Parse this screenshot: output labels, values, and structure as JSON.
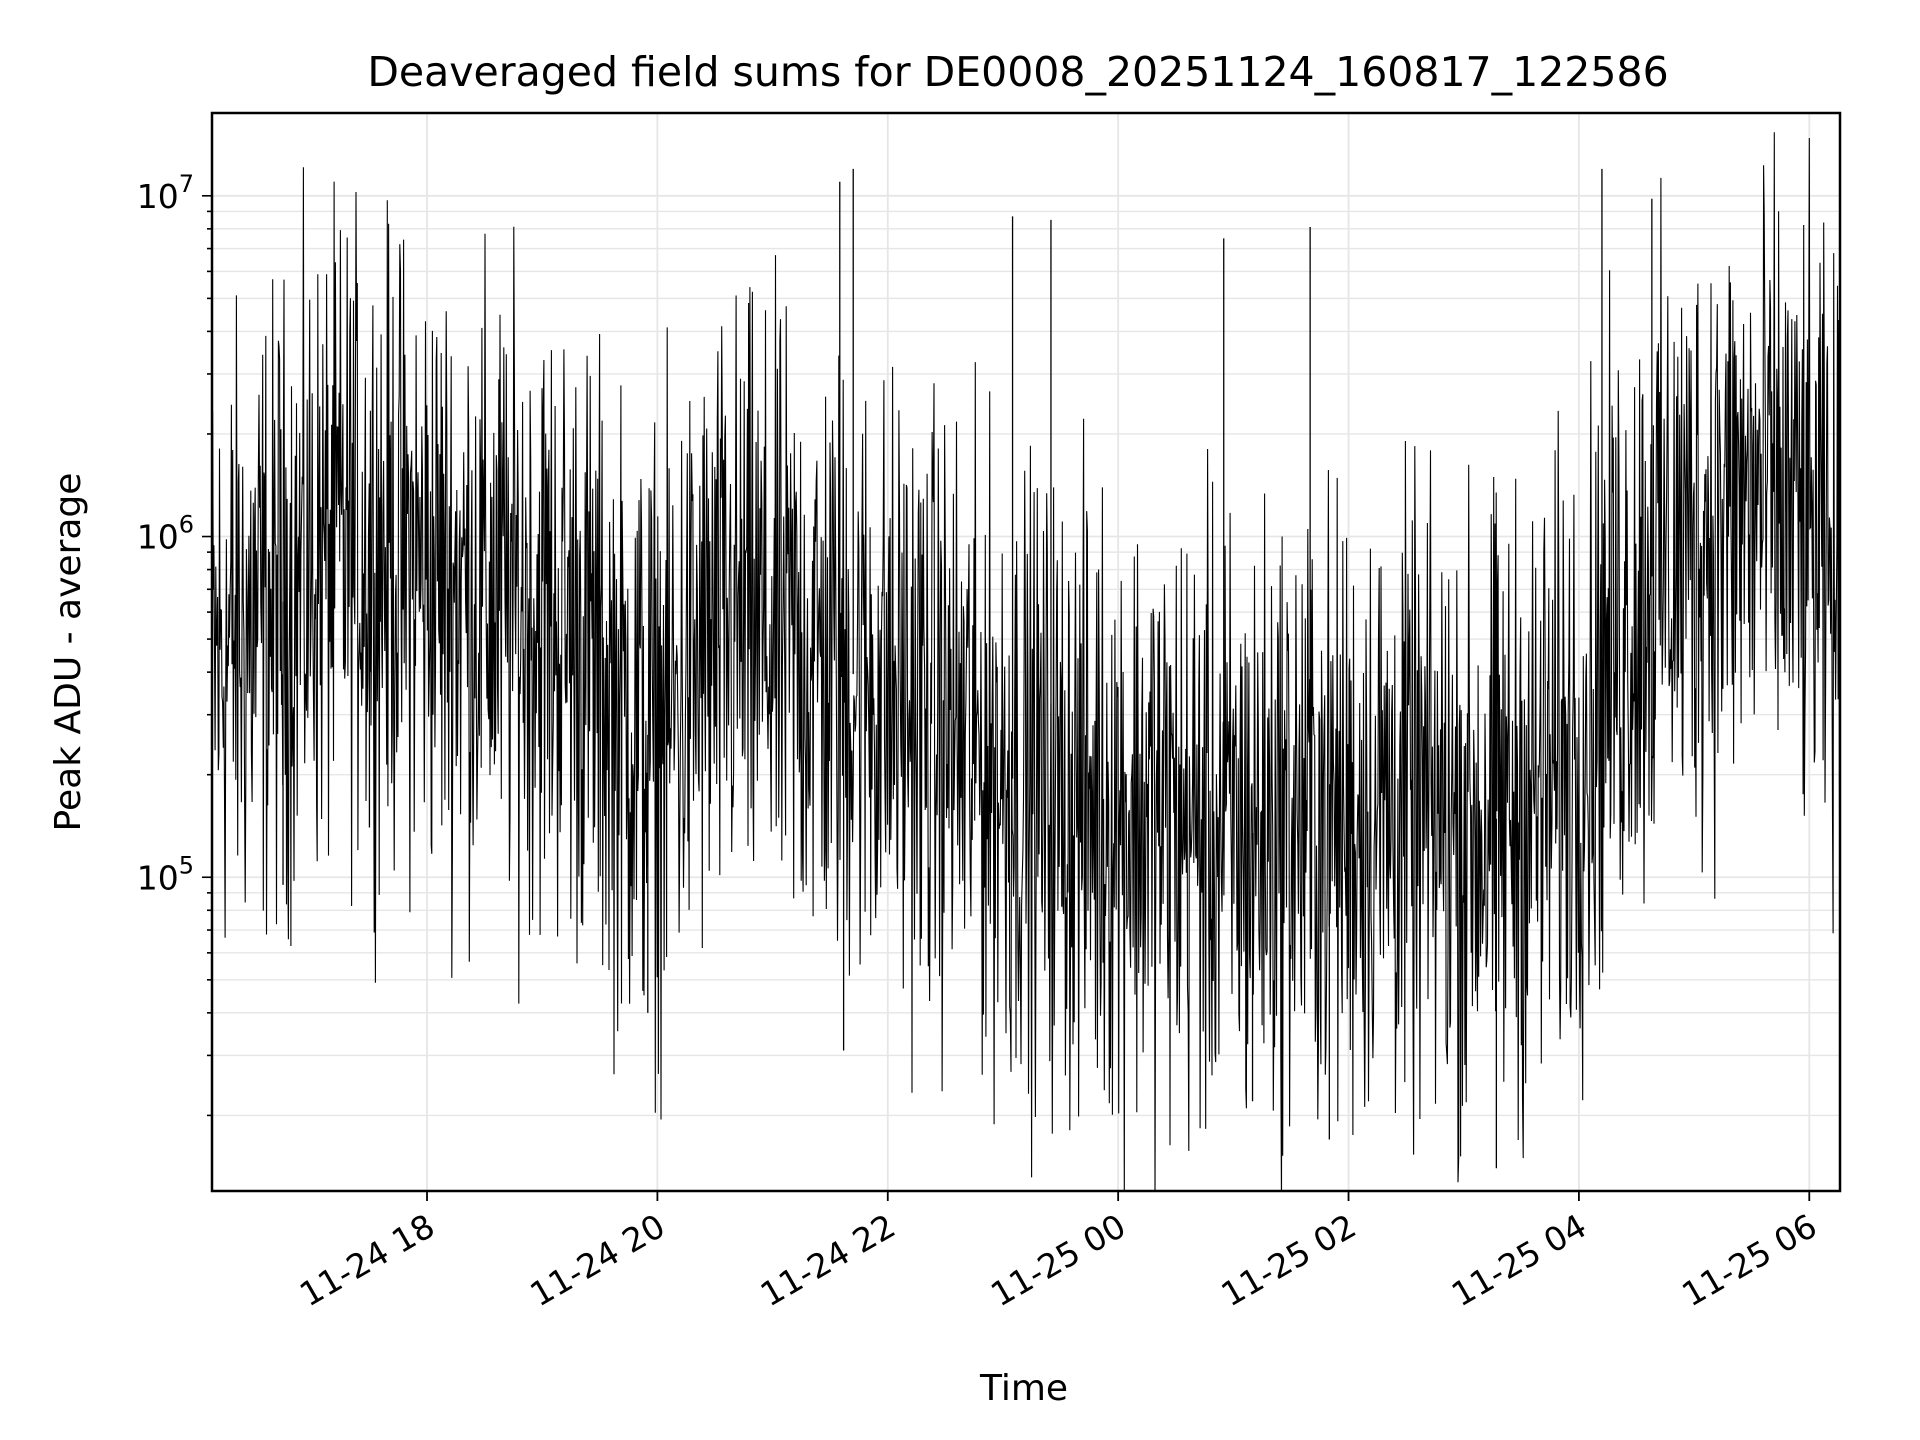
{
  "chart_data": {
    "type": "line",
    "title": "Deaveraged field sums for DE0008_20251124_160817_122586",
    "xlabel": "Time",
    "ylabel": "Peak ADU - average",
    "yscale": "log",
    "xlim": [
      "2025-11-24 16:08",
      "2025-11-25 06:16"
    ],
    "ylim": [
      12000,
      17500000
    ],
    "x_ticks": [
      {
        "value": "2025-11-24 18:00",
        "label": "11-24 18"
      },
      {
        "value": "2025-11-24 20:00",
        "label": "11-24 20"
      },
      {
        "value": "2025-11-24 22:00",
        "label": "11-24 22"
      },
      {
        "value": "2025-11-25 00:00",
        "label": "11-25 00"
      },
      {
        "value": "2025-11-25 02:00",
        "label": "11-25 02"
      },
      {
        "value": "2025-11-25 04:00",
        "label": "11-25 04"
      },
      {
        "value": "2025-11-25 06:00",
        "label": "11-25 06"
      }
    ],
    "y_ticks": [
      {
        "value": 100000,
        "base": "10",
        "exp": "5"
      },
      {
        "value": 1000000,
        "base": "10",
        "exp": "6"
      },
      {
        "value": 10000000,
        "base": "10",
        "exp": "7"
      }
    ],
    "grid": true,
    "line_color": "#000000",
    "grid_color": "#e6e6e6",
    "series": [
      {
        "x": [
          "2025-11-24 16:08",
          "2025-11-24 16:20",
          "2025-11-24 16:40",
          "2025-11-24 17:00",
          "2025-11-24 17:20",
          "2025-11-24 17:40",
          "2025-11-24 18:00",
          "2025-11-24 18:20",
          "2025-11-24 18:40",
          "2025-11-24 19:00",
          "2025-11-24 19:20",
          "2025-11-24 19:40",
          "2025-11-24 20:00",
          "2025-11-24 20:20",
          "2025-11-24 20:40",
          "2025-11-24 21:00",
          "2025-11-24 21:20",
          "2025-11-24 21:40",
          "2025-11-24 22:00",
          "2025-11-24 22:20",
          "2025-11-24 22:40",
          "2025-11-24 23:00",
          "2025-11-24 23:20",
          "2025-11-24 23:40",
          "2025-11-25 00:00",
          "2025-11-25 00:20",
          "2025-11-25 00:40",
          "2025-11-25 01:00",
          "2025-11-25 01:20",
          "2025-11-25 01:40",
          "2025-11-25 02:00",
          "2025-11-25 02:20",
          "2025-11-25 02:40",
          "2025-11-25 03:00",
          "2025-11-25 03:20",
          "2025-11-25 03:40",
          "2025-11-25 04:00",
          "2025-11-25 04:20",
          "2025-11-25 04:40",
          "2025-11-25 05:00",
          "2025-11-25 05:20",
          "2025-11-25 05:40",
          "2025-11-25 06:00",
          "2025-11-25 06:16"
        ],
        "values": [
          400000,
          500000,
          600000,
          800000,
          1000000,
          900000,
          800000,
          700000,
          650000,
          600000,
          500000,
          300000,
          250000,
          400000,
          550000,
          500000,
          450000,
          400000,
          350000,
          300000,
          250000,
          200000,
          180000,
          170000,
          160000,
          150000,
          140000,
          130000,
          140000,
          150000,
          150000,
          160000,
          150000,
          140000,
          150000,
          170000,
          250000,
          500000,
          800000,
          1000000,
          1200000,
          1300000,
          1000000,
          600000
        ]
      }
    ],
    "spikes": [
      {
        "x": "2025-11-24 21:35",
        "y": 11000000
      },
      {
        "x": "2025-11-24 21:42",
        "y": 12000000
      },
      {
        "x": "2025-11-24 23:05",
        "y": 8700000
      },
      {
        "x": "2025-11-24 23:25",
        "y": 8500000
      },
      {
        "x": "2025-11-25 04:12",
        "y": 12000000
      },
      {
        "x": "2025-11-25 04:38",
        "y": 9800000
      },
      {
        "x": "2025-11-25 00:55",
        "y": 7500000
      },
      {
        "x": "2025-11-25 01:40",
        "y": 8100000
      },
      {
        "x": "2025-11-25 01:10",
        "y": 22000
      },
      {
        "x": "2025-11-25 01:50",
        "y": 17000
      },
      {
        "x": "2025-11-25 03:17",
        "y": 14000
      },
      {
        "x": "2025-11-24 16:45",
        "y": 95000
      },
      {
        "x": "2025-11-24 17:30",
        "y": 140000
      },
      {
        "x": "2025-11-24 19:55",
        "y": 40000
      },
      {
        "x": "2025-11-24 21:37",
        "y": 31000
      }
    ]
  }
}
